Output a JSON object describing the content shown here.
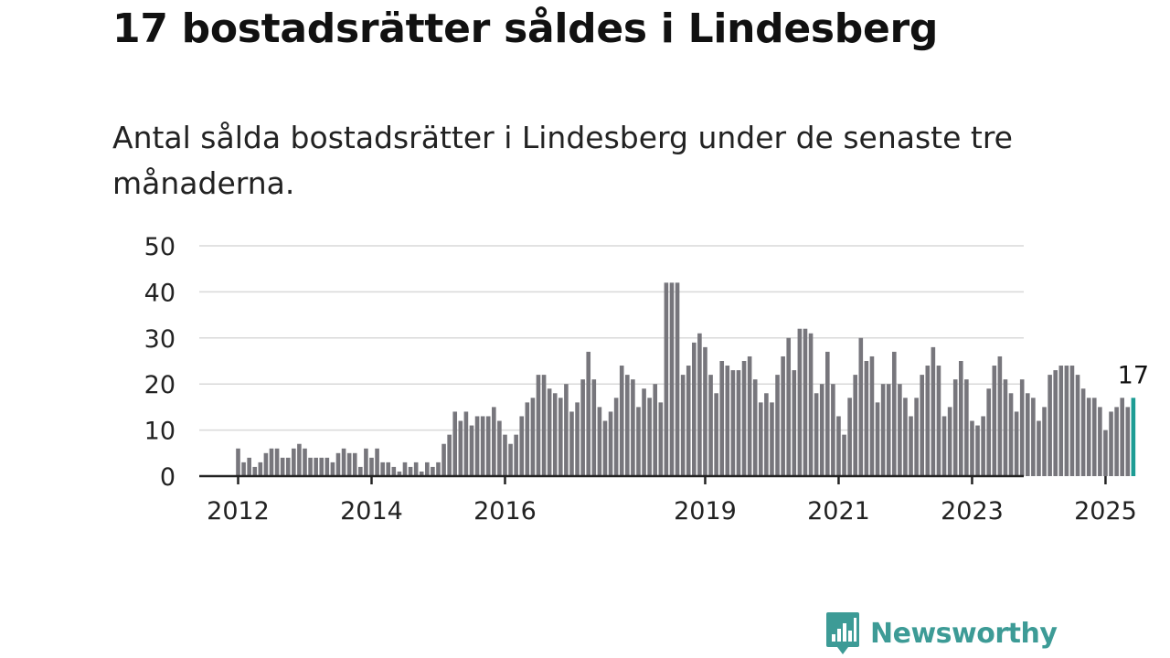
{
  "title": "17 bostadsrätter såldes i Lindesberg",
  "subtitle": "Antal sålda bostadsrätter i Lindesberg under de senaste tre månaderna.",
  "brand": {
    "name": "Newsworthy",
    "color": "#3d9b96"
  },
  "colors": {
    "bar": "#77767c",
    "highlight": "#1d9c94",
    "grid": "#d9d9d9",
    "axis": "#222222"
  },
  "chart_data": {
    "type": "bar",
    "title": "",
    "xlabel": "",
    "ylabel": "",
    "ylim": [
      0,
      50
    ],
    "yticks": [
      "0",
      "10",
      "20",
      "30",
      "40",
      "50"
    ],
    "xticks": [
      "2012",
      "2014",
      "2016",
      "2019",
      "2021",
      "2023",
      "2025"
    ],
    "start": "2012-01",
    "frequency": "monthly",
    "highlight_label": "17",
    "values": [
      6,
      3,
      4,
      2,
      3,
      5,
      6,
      6,
      4,
      4,
      6,
      7,
      6,
      4,
      4,
      4,
      4,
      3,
      5,
      6,
      5,
      5,
      2,
      6,
      4,
      6,
      3,
      3,
      2,
      1,
      3,
      2,
      3,
      1,
      3,
      2,
      3,
      7,
      9,
      14,
      12,
      14,
      11,
      13,
      13,
      13,
      15,
      12,
      9,
      7,
      9,
      13,
      16,
      17,
      22,
      22,
      19,
      18,
      17,
      20,
      14,
      16,
      21,
      27,
      21,
      15,
      12,
      14,
      17,
      24,
      22,
      21,
      15,
      19,
      17,
      20,
      16,
      42,
      42,
      42,
      22,
      24,
      29,
      31,
      28,
      22,
      18,
      25,
      24,
      23,
      23,
      25,
      26,
      21,
      16,
      18,
      16,
      22,
      26,
      30,
      23,
      32,
      32,
      31,
      18,
      20,
      27,
      20,
      13,
      9,
      17,
      22,
      30,
      25,
      26,
      16,
      20,
      20,
      27,
      20,
      17,
      13,
      17,
      22,
      24,
      28,
      24,
      13,
      15,
      21,
      25,
      21,
      12,
      11,
      13,
      19,
      24,
      26,
      21,
      18,
      14,
      21,
      18,
      17,
      12,
      15,
      22,
      23,
      24,
      24,
      24,
      22,
      19,
      17,
      17,
      15,
      10,
      14,
      15,
      17,
      15,
      17
    ]
  }
}
